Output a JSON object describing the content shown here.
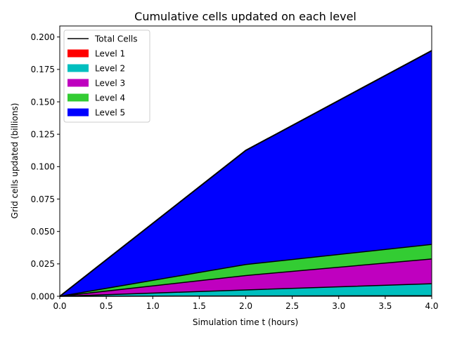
{
  "chart_data": {
    "type": "area",
    "stacked": true,
    "title": "Cumulative cells updated on each level",
    "xlabel": "Simulation time t (hours)",
    "ylabel": "Grid cells updated (billions)",
    "xlim": [
      0,
      4.0
    ],
    "ylim": [
      0,
      0.2085
    ],
    "x": [
      0,
      2.0,
      4.0
    ],
    "xticks": [
      0.0,
      0.5,
      1.0,
      1.5,
      2.0,
      2.5,
      3.0,
      3.5,
      4.0
    ],
    "xtick_labels": [
      "0.0",
      "0.5",
      "1.0",
      "1.5",
      "2.0",
      "2.5",
      "3.0",
      "3.5",
      "4.0"
    ],
    "yticks": [
      0.0,
      0.025,
      0.05,
      0.075,
      0.1,
      0.125,
      0.15,
      0.175,
      0.2
    ],
    "ytick_labels": [
      "0.000",
      "0.025",
      "0.050",
      "0.075",
      "0.100",
      "0.125",
      "0.150",
      "0.175",
      "0.200"
    ],
    "grid": false,
    "legend_position": "top-left",
    "total_line": {
      "name": "Total Cells",
      "color": "#000000",
      "values": [
        0,
        0.1125,
        0.1895
      ]
    },
    "series": [
      {
        "name": "Level 1",
        "color": "#ff0000",
        "values": [
          0,
          0.0002,
          0.0004
        ]
      },
      {
        "name": "Level 2",
        "color": "#00bfbf",
        "values": [
          0,
          0.0047,
          0.0093
        ]
      },
      {
        "name": "Level 3",
        "color": "#bf00bf",
        "values": [
          0,
          0.0111,
          0.0191
        ]
      },
      {
        "name": "Level 4",
        "color": "#33cc33",
        "values": [
          0,
          0.0085,
          0.0112
        ]
      },
      {
        "name": "Level 5",
        "color": "#0000ff",
        "values": [
          0,
          0.088,
          0.1495
        ]
      }
    ]
  }
}
